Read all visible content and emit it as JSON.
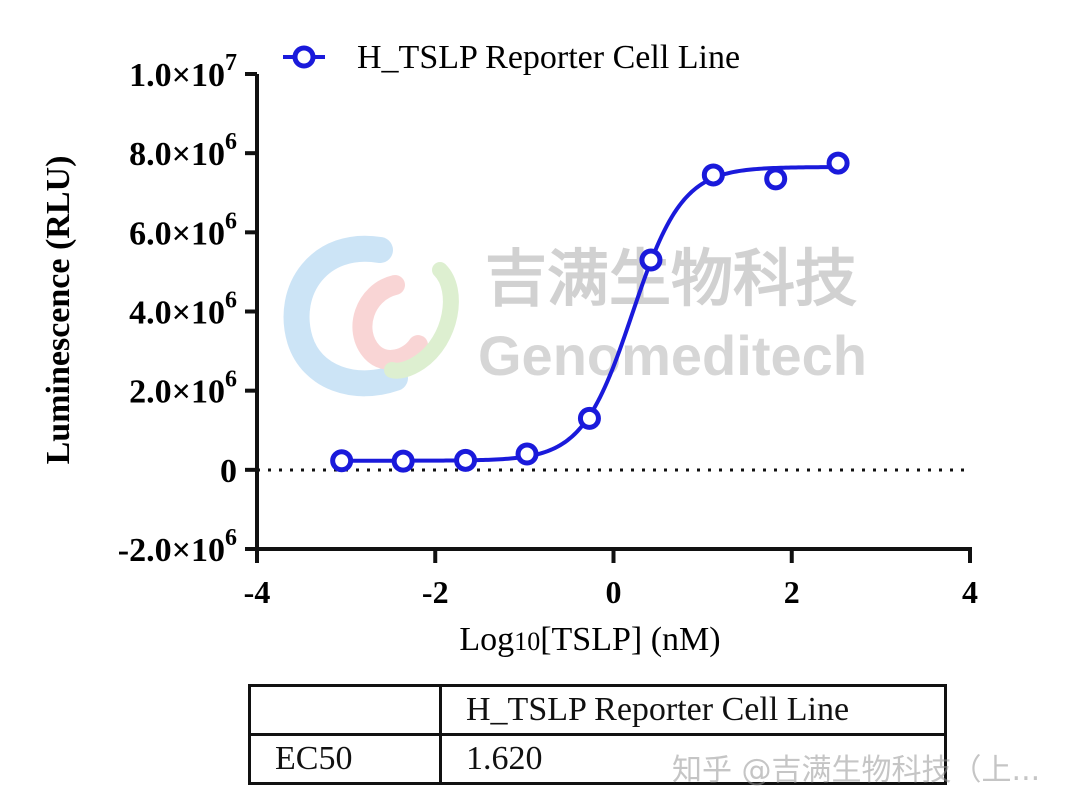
{
  "chart_data": {
    "type": "line",
    "title": "",
    "xlabel_main": "Log",
    "xlabel_sub": "10",
    "xlabel_rest": "[TSLP] (nM)",
    "ylabel": "Luminescence (RLU)",
    "xlim": [
      -4,
      4
    ],
    "ylim": [
      -2000000,
      10000000
    ],
    "x_ticks": [
      -4,
      -2,
      0,
      2,
      4
    ],
    "y_ticks": [
      {
        "value": 10000000,
        "mantissa": "1.0",
        "exp": "7"
      },
      {
        "value": 8000000,
        "mantissa": "8.0",
        "exp": "6"
      },
      {
        "value": 6000000,
        "mantissa": "6.0",
        "exp": "6"
      },
      {
        "value": 4000000,
        "mantissa": "4.0",
        "exp": "6"
      },
      {
        "value": 2000000,
        "mantissa": "2.0",
        "exp": "6"
      },
      {
        "value": 0,
        "mantissa": "0",
        "exp": ""
      },
      {
        "value": -2000000,
        "mantissa": "-2.0",
        "exp": "6"
      }
    ],
    "times_sign": "×10",
    "zero_line": "dotted",
    "legend_position": "top",
    "series": [
      {
        "name": "H_TSLP Reporter Cell Line",
        "color": "#1a1adb",
        "marker": "open-circle",
        "x": [
          -3.05,
          -2.36,
          -1.66,
          -0.97,
          -0.27,
          0.42,
          1.12,
          1.82,
          2.52
        ],
        "y": [
          230000,
          220000,
          240000,
          400000,
          1300000,
          5300000,
          7450000,
          7350000,
          7750000
        ],
        "fit": {
          "bottom": 230000,
          "top": 7650000,
          "logEC50": 0.21,
          "hill": 1.55
        }
      }
    ]
  },
  "table": {
    "header": [
      "",
      "H_TSLP Reporter Cell Line"
    ],
    "row_label": "EC50",
    "row_value": "1.620"
  },
  "watermark": {
    "cn": "吉满生物科技",
    "en": "Genomeditech",
    "footer": "知乎 @吉满生物科技（上..."
  }
}
